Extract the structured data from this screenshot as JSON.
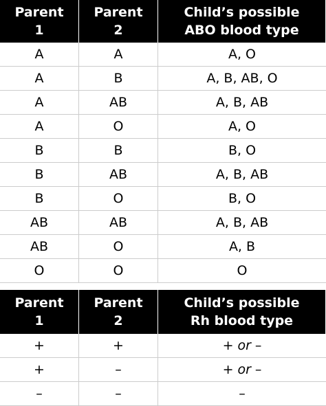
{
  "tables": [
    {
      "header": [
        "Parent\n1",
        "Parent\n2",
        "Child’s possible\nABO blood type"
      ],
      "rows": [
        [
          "A",
          "A",
          "A, O"
        ],
        [
          "A",
          "B",
          "A, B, AB, O"
        ],
        [
          "A",
          "AB",
          "A, B, AB"
        ],
        [
          "A",
          "O",
          "A, O"
        ],
        [
          "B",
          "B",
          "B, O"
        ],
        [
          "B",
          "AB",
          "A, B, AB"
        ],
        [
          "B",
          "O",
          "B, O"
        ],
        [
          "AB",
          "AB",
          "A, B, AB"
        ],
        [
          "AB",
          "O",
          "A, B"
        ],
        [
          "O",
          "O",
          "O"
        ]
      ]
    },
    {
      "header": [
        "Parent\n1",
        "Parent\n2",
        "Child’s possible\nRh blood type"
      ],
      "rows": [
        [
          "+",
          "+",
          [
            "+",
            "or",
            "–"
          ]
        ],
        [
          "+",
          "–",
          [
            "+",
            "or",
            "–"
          ]
        ],
        [
          "–",
          "–",
          "–"
        ]
      ]
    }
  ]
}
